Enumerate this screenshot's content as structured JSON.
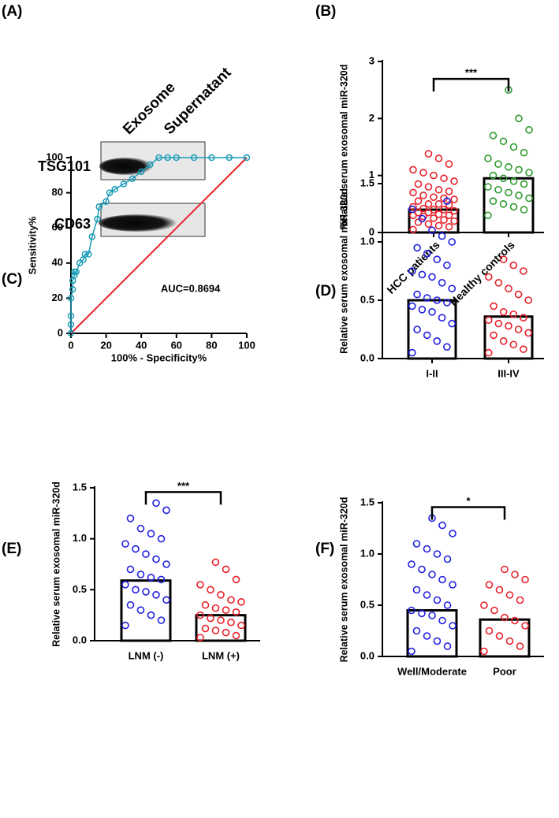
{
  "blot": {
    "panel_label": "(A)",
    "columns": [
      "Exosome",
      "Supernatant"
    ],
    "rows": [
      "TSG101",
      "CD63"
    ]
  },
  "chart_data": [
    {
      "type": "bar_scatter",
      "panel_label": "(B)",
      "ylabel": "Relative serum exosomal miR-320d",
      "categories": [
        "HCC patients",
        "Healthy controls"
      ],
      "ylim": [
        0,
        3
      ],
      "yticks": [
        0,
        1,
        2,
        3
      ],
      "annotation": "***",
      "groups": [
        {
          "color": "#e8202a",
          "mean": 0.4,
          "points": [
            0.05,
            0.1,
            0.12,
            0.15,
            0.18,
            0.2,
            0.22,
            0.25,
            0.28,
            0.3,
            0.3,
            0.32,
            0.35,
            0.35,
            0.38,
            0.4,
            0.4,
            0.42,
            0.45,
            0.48,
            0.5,
            0.5,
            0.55,
            0.58,
            0.6,
            0.62,
            0.65,
            0.7,
            0.72,
            0.75,
            0.8,
            0.85,
            0.9,
            0.95,
            1.0,
            1.05,
            1.1,
            1.2,
            1.3,
            1.38
          ]
        },
        {
          "color": "#2e9a2e",
          "mean": 0.95,
          "points": [
            0.3,
            0.4,
            0.45,
            0.5,
            0.55,
            0.6,
            0.65,
            0.7,
            0.75,
            0.8,
            0.85,
            0.9,
            0.95,
            1.0,
            1.05,
            1.1,
            1.15,
            1.2,
            1.3,
            1.4,
            1.5,
            1.6,
            1.7,
            1.8,
            2.0,
            2.5
          ]
        }
      ]
    },
    {
      "type": "roc",
      "panel_label": "(C)",
      "xlabel": "100% - Specificity%",
      "ylabel": "Sensitivity%",
      "annotation": "AUC=0.8694",
      "xlim": [
        0,
        100
      ],
      "ylim": [
        0,
        100
      ],
      "xticks": [
        0,
        20,
        40,
        60,
        80,
        100
      ],
      "yticks": [
        0,
        20,
        40,
        60,
        80,
        100
      ],
      "color": "#1a9bb5",
      "x": [
        0,
        0,
        0,
        0,
        1,
        1,
        2,
        2,
        3,
        5,
        7,
        8,
        10,
        12,
        15,
        16,
        20,
        22,
        25,
        30,
        35,
        40,
        45,
        50,
        55,
        60,
        70,
        80,
        90,
        100
      ],
      "values": [
        0,
        5,
        10,
        20,
        25,
        30,
        33,
        35,
        35,
        40,
        42,
        45,
        45,
        55,
        65,
        72,
        75,
        80,
        82,
        85,
        88,
        92,
        96,
        100,
        100,
        100,
        100,
        100,
        100,
        100
      ],
      "reference": {
        "color": "#e8202a",
        "x": [
          0,
          100
        ],
        "values": [
          0,
          100
        ]
      }
    },
    {
      "type": "bar_scatter",
      "panel_label": "(D)",
      "ylabel": "Relative serum exosomal miR-320d",
      "categories": [
        "I-II",
        "III-IV"
      ],
      "ylim": [
        0,
        1.5
      ],
      "yticks": [
        {
          "value": 0,
          "label": "0.0"
        },
        0.5,
        {
          "value": 1,
          "label": "1.0"
        },
        1.5
      ],
      "groups": [
        {
          "color": "#1f1fe0",
          "mean": 0.5,
          "points": [
            0.05,
            0.1,
            0.15,
            0.2,
            0.25,
            0.3,
            0.35,
            0.4,
            0.42,
            0.45,
            0.48,
            0.5,
            0.52,
            0.55,
            0.6,
            0.65,
            0.7,
            0.72,
            0.75,
            0.8,
            0.85,
            0.9,
            0.95,
            1.0,
            1.05,
            1.1,
            1.2,
            1.28,
            1.35
          ]
        },
        {
          "color": "#e8202a",
          "mean": 0.36,
          "points": [
            0.05,
            0.08,
            0.12,
            0.15,
            0.2,
            0.22,
            0.25,
            0.28,
            0.3,
            0.33,
            0.35,
            0.38,
            0.4,
            0.45,
            0.5,
            0.55,
            0.6,
            0.65,
            0.7,
            0.75,
            0.8,
            0.85
          ]
        }
      ]
    },
    {
      "type": "bar_scatter",
      "panel_label": "(E)",
      "ylabel": "Relative serum exosomal miR-320d",
      "categories": [
        "LNM (-)",
        "LNM (+)"
      ],
      "ylim": [
        0,
        1.5
      ],
      "yticks": [
        {
          "value": 0,
          "label": "0.0"
        },
        0.5,
        {
          "value": 1,
          "label": "1.0"
        },
        1.5
      ],
      "annotation": "***",
      "groups": [
        {
          "color": "#1f1fe0",
          "mean": 0.59,
          "points": [
            0.15,
            0.2,
            0.25,
            0.3,
            0.35,
            0.4,
            0.45,
            0.48,
            0.5,
            0.55,
            0.6,
            0.62,
            0.65,
            0.7,
            0.75,
            0.8,
            0.85,
            0.9,
            0.95,
            1.0,
            1.05,
            1.1,
            1.2,
            1.28,
            1.35
          ]
        },
        {
          "color": "#e8202a",
          "mean": 0.25,
          "points": [
            0.03,
            0.05,
            0.08,
            0.1,
            0.12,
            0.15,
            0.18,
            0.2,
            0.22,
            0.25,
            0.28,
            0.3,
            0.32,
            0.35,
            0.38,
            0.4,
            0.45,
            0.5,
            0.55,
            0.6,
            0.7,
            0.77
          ]
        }
      ]
    },
    {
      "type": "bar_scatter",
      "panel_label": "(F)",
      "ylabel": "Relative serum exosomal miR-320d",
      "categories": [
        "Well/Moderate",
        "Poor"
      ],
      "ylim": [
        0,
        1.5
      ],
      "yticks": [
        {
          "value": 0,
          "label": "0.0"
        },
        0.5,
        {
          "value": 1,
          "label": "1.0"
        },
        1.5
      ],
      "annotation": "*",
      "groups": [
        {
          "color": "#1f1fe0",
          "mean": 0.45,
          "points": [
            0.05,
            0.1,
            0.15,
            0.2,
            0.25,
            0.3,
            0.35,
            0.4,
            0.42,
            0.45,
            0.5,
            0.55,
            0.6,
            0.65,
            0.7,
            0.75,
            0.8,
            0.85,
            0.9,
            0.95,
            1.0,
            1.05,
            1.1,
            1.2,
            1.28,
            1.35
          ]
        },
        {
          "color": "#e8202a",
          "mean": 0.36,
          "points": [
            0.05,
            0.1,
            0.15,
            0.2,
            0.25,
            0.3,
            0.35,
            0.38,
            0.45,
            0.5,
            0.55,
            0.6,
            0.65,
            0.7,
            0.75,
            0.8,
            0.85
          ]
        }
      ]
    }
  ]
}
